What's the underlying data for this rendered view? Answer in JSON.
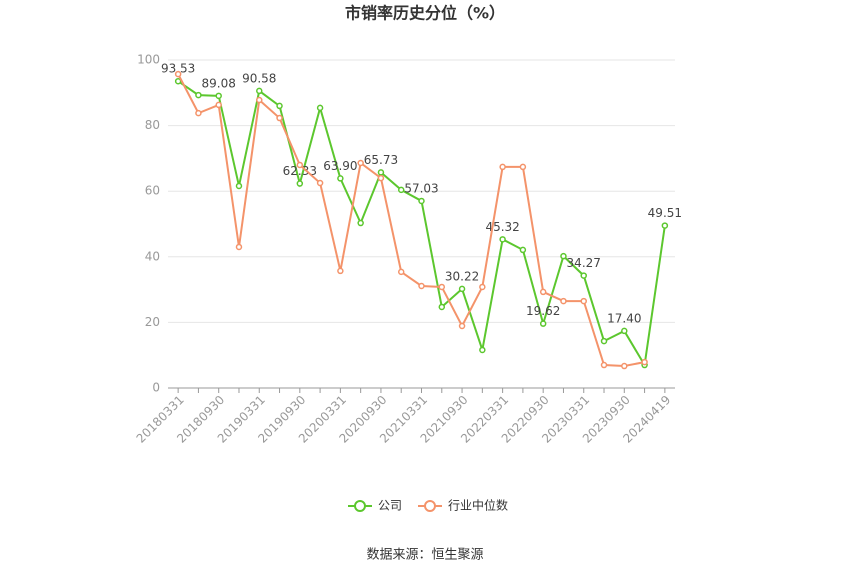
{
  "chart_data": {
    "type": "line",
    "title": "市销率历史分位（%）",
    "categories": [
      "20180331",
      null,
      "20180930",
      null,
      "20190331",
      null,
      "20190930",
      null,
      "20200331",
      null,
      "20200930",
      null,
      "20210331",
      null,
      "20210930",
      null,
      "20220331",
      null,
      "20220930",
      null,
      "20230331",
      null,
      "20230930",
      null,
      "20240419"
    ],
    "series": [
      {
        "name": "公司",
        "color": "#5cc72e",
        "values": [
          93.53,
          89.3,
          89.08,
          61.6,
          90.58,
          86.0,
          62.33,
          85.4,
          63.9,
          50.3,
          65.73,
          60.4,
          57.03,
          24.7,
          30.22,
          11.6,
          45.32,
          42.1,
          19.62,
          40.2,
          34.27,
          14.3,
          17.4,
          7.0,
          49.51
        ],
        "value_labels": [
          "93.53",
          null,
          "89.08",
          null,
          "90.58",
          null,
          "62.33",
          null,
          "63.90",
          null,
          "65.73",
          null,
          "57.03",
          null,
          "30.22",
          null,
          "45.32",
          null,
          "19.62",
          null,
          "34.27",
          null,
          "17.40",
          null,
          "49.51"
        ]
      },
      {
        "name": "行业中位数",
        "color": "#f4936a",
        "values": [
          95.7,
          83.8,
          86.3,
          43.0,
          87.8,
          82.3,
          68.0,
          62.5,
          35.7,
          68.6,
          64.0,
          35.4,
          31.1,
          30.8,
          18.9,
          30.8,
          67.4,
          67.4,
          29.3,
          26.5,
          26.5,
          7.0,
          6.7,
          7.9,
          null
        ]
      }
    ],
    "ylim": [
      0,
      100
    ],
    "yticks": [
      0,
      20,
      40,
      60,
      80,
      100
    ],
    "grid": true,
    "source": "数据来源：恒生聚源"
  }
}
